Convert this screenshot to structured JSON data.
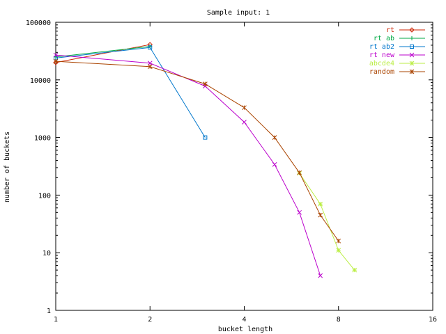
{
  "chart_data": {
    "type": "line",
    "title": "Sample input: 1",
    "xlabel": "bucket length",
    "ylabel": "number of buckets",
    "x_scale": "log2",
    "y_scale": "log10",
    "xlim": [
      1,
      16
    ],
    "ylim": [
      1,
      100000
    ],
    "x_ticks": [
      1,
      2,
      4,
      8,
      16
    ],
    "x_tick_labels": [
      "1",
      "2",
      "4",
      "8",
      "16"
    ],
    "y_ticks": [
      1,
      10,
      100,
      1000,
      10000,
      100000
    ],
    "y_tick_labels": [
      "1",
      "10",
      "100",
      "1000",
      "10000",
      "100000"
    ],
    "grid": false,
    "legend_position": "top-right",
    "series": [
      {
        "name": "rt",
        "color": "#cc2200",
        "marker": "diamond",
        "points": [
          [
            1,
            20000
          ],
          [
            2,
            41000
          ]
        ]
      },
      {
        "name": "rt ab",
        "color": "#00aa44",
        "marker": "plus",
        "points": [
          [
            1,
            25000
          ],
          [
            2,
            38000
          ]
        ]
      },
      {
        "name": "rt ab2",
        "color": "#0077cc",
        "marker": "square",
        "points": [
          [
            1,
            24000
          ],
          [
            2,
            36500
          ],
          [
            3,
            1000
          ]
        ]
      },
      {
        "name": "rt new",
        "color": "#bb00cc",
        "marker": "cross",
        "points": [
          [
            1,
            27000
          ],
          [
            2,
            19500
          ],
          [
            3,
            7800
          ],
          [
            4,
            1850
          ],
          [
            5,
            340
          ],
          [
            6,
            50
          ],
          [
            7,
            4
          ]
        ]
      },
      {
        "name": "abcde4",
        "color": "#bbee44",
        "marker": "star",
        "points": [
          [
            6,
            240
          ],
          [
            7,
            70
          ],
          [
            8,
            11
          ],
          [
            9,
            5
          ]
        ]
      },
      {
        "name": "random",
        "color": "#aa4400",
        "marker": "asterisk",
        "points": [
          [
            1,
            21000
          ],
          [
            2,
            17000
          ],
          [
            3,
            8500
          ],
          [
            4,
            3300
          ],
          [
            5,
            1000
          ],
          [
            6,
            245
          ],
          [
            7,
            45
          ],
          [
            8,
            16
          ]
        ]
      }
    ]
  }
}
